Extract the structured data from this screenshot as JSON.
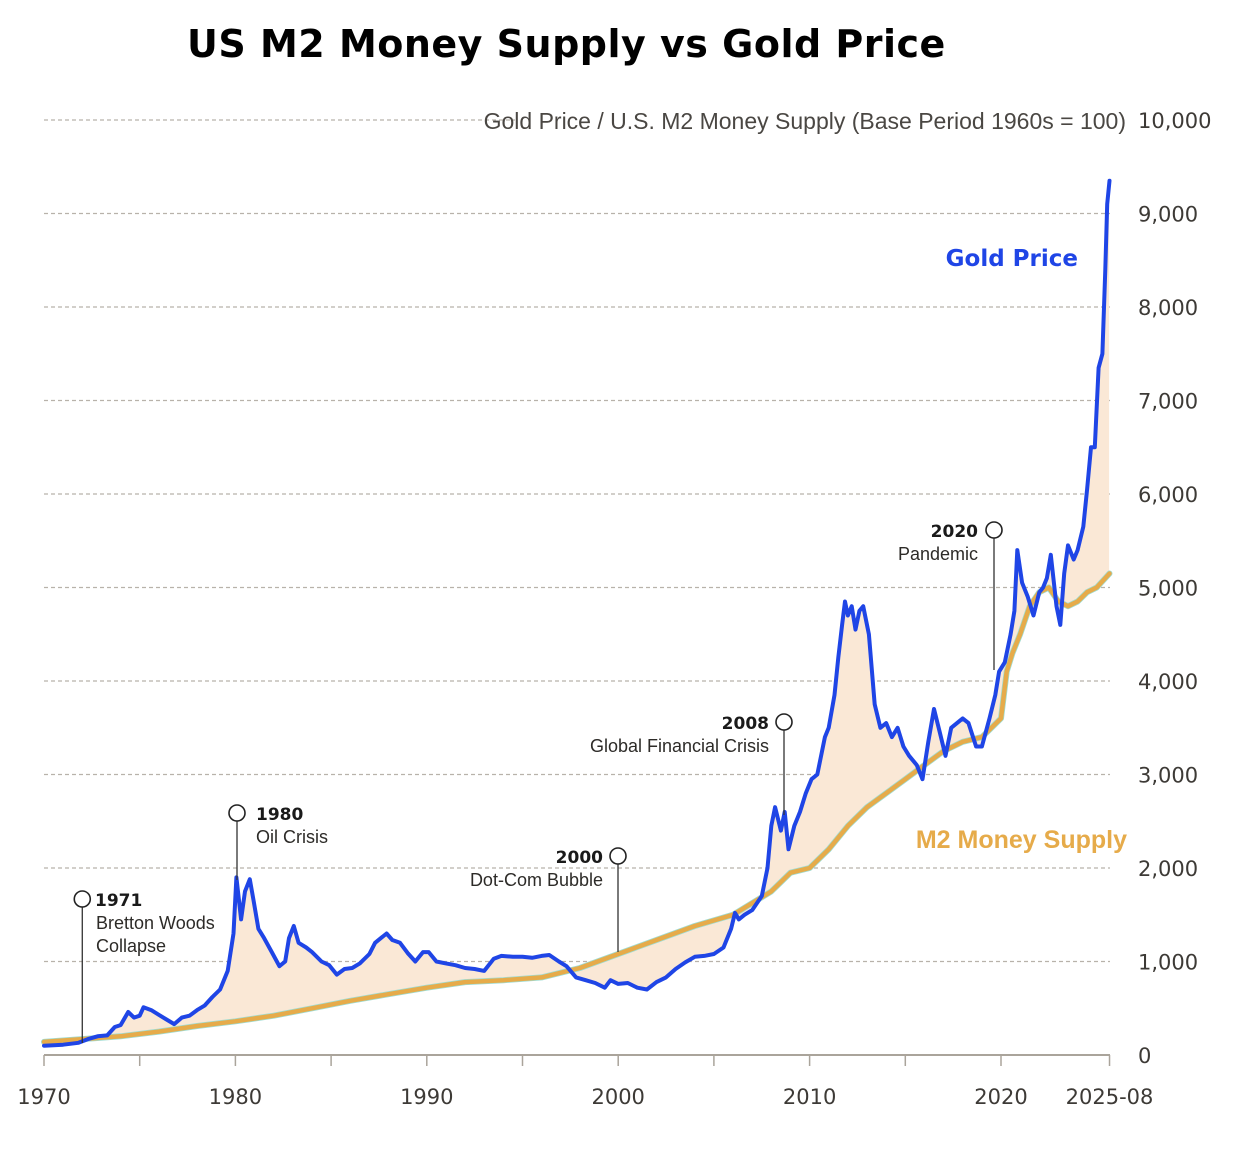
{
  "title": "US M2 Money Supply vs Gold Price",
  "chart_data": {
    "type": "line",
    "title": "US M2 Money Supply vs Gold Price",
    "ylabel": "Gold Price / U.S. M2 Money Supply (Base Period 1960s = 100)",
    "xlabel": "",
    "ylim": [
      0,
      10000
    ],
    "xlim": [
      1970,
      2025.67
    ],
    "grid": true,
    "legend": "inline",
    "y_ticks": [
      {
        "value": 0,
        "label": "0"
      },
      {
        "value": 1000,
        "label": "1,000"
      },
      {
        "value": 2000,
        "label": "2,000"
      },
      {
        "value": 3000,
        "label": "3,000"
      },
      {
        "value": 4000,
        "label": "4,000"
      },
      {
        "value": 5000,
        "label": "5,000"
      },
      {
        "value": 6000,
        "label": "6,000"
      },
      {
        "value": 7000,
        "label": "7,000"
      },
      {
        "value": 8000,
        "label": "8,000"
      },
      {
        "value": 9000,
        "label": "9,000"
      },
      {
        "value": 10000,
        "label": "10,000"
      }
    ],
    "x_ticks": [
      {
        "value": 1970,
        "label": "1970"
      },
      {
        "value": 1980,
        "label": "1980"
      },
      {
        "value": 1990,
        "label": "1990"
      },
      {
        "value": 2000,
        "label": "2000"
      },
      {
        "value": 2010,
        "label": "2010"
      },
      {
        "value": 2020,
        "label": "2020"
      },
      {
        "value": 2025.67,
        "label": "2025-08"
      }
    ],
    "x_minor_ticks": [
      1975,
      1985,
      1995,
      2005,
      2015
    ],
    "series": [
      {
        "name": "Gold Price",
        "color": "#1f45e6",
        "points": [
          [
            1970.0,
            100
          ],
          [
            1971.0,
            110
          ],
          [
            1971.8,
            130
          ],
          [
            1972.3,
            170
          ],
          [
            1972.8,
            200
          ],
          [
            1973.3,
            210
          ],
          [
            1973.7,
            300
          ],
          [
            1974.0,
            320
          ],
          [
            1974.4,
            460
          ],
          [
            1974.7,
            400
          ],
          [
            1975.0,
            420
          ],
          [
            1975.2,
            510
          ],
          [
            1975.6,
            480
          ],
          [
            1976.0,
            430
          ],
          [
            1976.4,
            380
          ],
          [
            1976.8,
            330
          ],
          [
            1977.2,
            400
          ],
          [
            1977.6,
            420
          ],
          [
            1978.0,
            480
          ],
          [
            1978.4,
            530
          ],
          [
            1978.8,
            620
          ],
          [
            1979.2,
            700
          ],
          [
            1979.6,
            900
          ],
          [
            1979.9,
            1300
          ],
          [
            1980.05,
            1900
          ],
          [
            1980.3,
            1450
          ],
          [
            1980.5,
            1750
          ],
          [
            1980.75,
            1880
          ],
          [
            1980.95,
            1650
          ],
          [
            1981.2,
            1350
          ],
          [
            1981.5,
            1250
          ],
          [
            1981.9,
            1100
          ],
          [
            1982.3,
            950
          ],
          [
            1982.6,
            1000
          ],
          [
            1982.8,
            1250
          ],
          [
            1983.05,
            1380
          ],
          [
            1983.3,
            1200
          ],
          [
            1983.7,
            1150
          ],
          [
            1984.0,
            1100
          ],
          [
            1984.5,
            1000
          ],
          [
            1984.9,
            960
          ],
          [
            1985.3,
            860
          ],
          [
            1985.7,
            920
          ],
          [
            1986.1,
            930
          ],
          [
            1986.5,
            980
          ],
          [
            1987.0,
            1080
          ],
          [
            1987.3,
            1200
          ],
          [
            1987.6,
            1250
          ],
          [
            1987.9,
            1300
          ],
          [
            1988.2,
            1230
          ],
          [
            1988.6,
            1200
          ],
          [
            1989.0,
            1090
          ],
          [
            1989.4,
            1000
          ],
          [
            1989.8,
            1100
          ],
          [
            1990.1,
            1100
          ],
          [
            1990.5,
            1000
          ],
          [
            1991.0,
            980
          ],
          [
            1991.5,
            960
          ],
          [
            1992.0,
            930
          ],
          [
            1992.5,
            920
          ],
          [
            1993.0,
            900
          ],
          [
            1993.5,
            1030
          ],
          [
            1993.9,
            1060
          ],
          [
            1994.5,
            1050
          ],
          [
            1995.0,
            1050
          ],
          [
            1995.5,
            1040
          ],
          [
            1996.0,
            1060
          ],
          [
            1996.4,
            1070
          ],
          [
            1996.9,
            1000
          ],
          [
            1997.3,
            950
          ],
          [
            1997.8,
            830
          ],
          [
            1998.3,
            800
          ],
          [
            1998.8,
            770
          ],
          [
            1999.3,
            720
          ],
          [
            1999.6,
            800
          ],
          [
            2000.0,
            760
          ],
          [
            2000.5,
            770
          ],
          [
            2001.0,
            720
          ],
          [
            2001.5,
            700
          ],
          [
            2002.0,
            780
          ],
          [
            2002.5,
            830
          ],
          [
            2003.0,
            920
          ],
          [
            2003.5,
            990
          ],
          [
            2004.0,
            1050
          ],
          [
            2004.5,
            1060
          ],
          [
            2005.0,
            1080
          ],
          [
            2005.5,
            1150
          ],
          [
            2005.9,
            1350
          ],
          [
            2006.1,
            1520
          ],
          [
            2006.3,
            1450
          ],
          [
            2006.6,
            1500
          ],
          [
            2007.0,
            1550
          ],
          [
            2007.5,
            1700
          ],
          [
            2007.8,
            2000
          ],
          [
            2008.0,
            2450
          ],
          [
            2008.2,
            2650
          ],
          [
            2008.5,
            2400
          ],
          [
            2008.7,
            2600
          ],
          [
            2008.9,
            2200
          ],
          [
            2009.2,
            2450
          ],
          [
            2009.5,
            2600
          ],
          [
            2009.8,
            2800
          ],
          [
            2010.1,
            2950
          ],
          [
            2010.4,
            3000
          ],
          [
            2010.8,
            3400
          ],
          [
            2011.0,
            3500
          ],
          [
            2011.3,
            3850
          ],
          [
            2011.5,
            4250
          ],
          [
            2011.7,
            4600
          ],
          [
            2011.85,
            4850
          ],
          [
            2012.0,
            4700
          ],
          [
            2012.2,
            4800
          ],
          [
            2012.4,
            4550
          ],
          [
            2012.6,
            4750
          ],
          [
            2012.8,
            4800
          ],
          [
            2013.1,
            4500
          ],
          [
            2013.4,
            3750
          ],
          [
            2013.7,
            3500
          ],
          [
            2014.0,
            3550
          ],
          [
            2014.3,
            3400
          ],
          [
            2014.6,
            3500
          ],
          [
            2014.9,
            3300
          ],
          [
            2015.2,
            3200
          ],
          [
            2015.6,
            3100
          ],
          [
            2015.9,
            2950
          ],
          [
            2016.2,
            3350
          ],
          [
            2016.5,
            3700
          ],
          [
            2016.8,
            3450
          ],
          [
            2017.1,
            3200
          ],
          [
            2017.4,
            3500
          ],
          [
            2017.7,
            3550
          ],
          [
            2018.0,
            3600
          ],
          [
            2018.3,
            3550
          ],
          [
            2018.7,
            3300
          ],
          [
            2019.0,
            3300
          ],
          [
            2019.4,
            3600
          ],
          [
            2019.7,
            3850
          ],
          [
            2019.9,
            4100
          ],
          [
            2020.2,
            4200
          ],
          [
            2020.5,
            4500
          ],
          [
            2020.7,
            4750
          ],
          [
            2020.85,
            5400
          ],
          [
            2021.1,
            5050
          ],
          [
            2021.4,
            4900
          ],
          [
            2021.7,
            4700
          ],
          [
            2022.0,
            4950
          ],
          [
            2022.2,
            5000
          ],
          [
            2022.4,
            5100
          ],
          [
            2022.6,
            5350
          ],
          [
            2022.9,
            4800
          ],
          [
            2023.1,
            4600
          ],
          [
            2023.3,
            5150
          ],
          [
            2023.5,
            5450
          ],
          [
            2023.8,
            5300
          ],
          [
            2024.0,
            5400
          ],
          [
            2024.3,
            5650
          ],
          [
            2024.5,
            6050
          ],
          [
            2024.7,
            6500
          ],
          [
            2024.9,
            6500
          ],
          [
            2025.1,
            7350
          ],
          [
            2025.3,
            7500
          ],
          [
            2025.45,
            8400
          ],
          [
            2025.55,
            9100
          ],
          [
            2025.67,
            9350
          ]
        ]
      },
      {
        "name": "M2 Money Supply",
        "color": "#e6ab4a",
        "points": [
          [
            1970.0,
            140
          ],
          [
            1972.0,
            170
          ],
          [
            1974.0,
            200
          ],
          [
            1976.0,
            250
          ],
          [
            1978.0,
            310
          ],
          [
            1980.0,
            360
          ],
          [
            1982.0,
            420
          ],
          [
            1984.0,
            500
          ],
          [
            1986.0,
            580
          ],
          [
            1988.0,
            650
          ],
          [
            1990.0,
            720
          ],
          [
            1992.0,
            780
          ],
          [
            1994.0,
            800
          ],
          [
            1996.0,
            830
          ],
          [
            1998.0,
            930
          ],
          [
            2000.0,
            1080
          ],
          [
            2002.0,
            1230
          ],
          [
            2004.0,
            1380
          ],
          [
            2006.0,
            1500
          ],
          [
            2008.0,
            1750
          ],
          [
            2009.0,
            1950
          ],
          [
            2010.0,
            2000
          ],
          [
            2011.0,
            2200
          ],
          [
            2012.0,
            2450
          ],
          [
            2013.0,
            2650
          ],
          [
            2014.0,
            2800
          ],
          [
            2015.0,
            2950
          ],
          [
            2016.0,
            3100
          ],
          [
            2017.0,
            3250
          ],
          [
            2018.0,
            3350
          ],
          [
            2019.0,
            3400
          ],
          [
            2019.5,
            3500
          ],
          [
            2020.0,
            3600
          ],
          [
            2020.3,
            4100
          ],
          [
            2020.6,
            4300
          ],
          [
            2021.0,
            4500
          ],
          [
            2021.5,
            4800
          ],
          [
            2022.0,
            4950
          ],
          [
            2022.5,
            5000
          ],
          [
            2023.0,
            4850
          ],
          [
            2023.5,
            4800
          ],
          [
            2024.0,
            4850
          ],
          [
            2024.5,
            4950
          ],
          [
            2025.0,
            5000
          ],
          [
            2025.67,
            5150
          ]
        ]
      }
    ],
    "series_labels": [
      {
        "series": "Gold Price",
        "text": "Gold Price"
      },
      {
        "series": "M2 Money Supply",
        "text": "M2 Money Supply"
      }
    ],
    "fill_between": {
      "color": "#fae8d6",
      "description": "Shaded area between Gold Price and M2 Money Supply lines"
    },
    "annotations": [
      {
        "year": "1971",
        "text_lines": [
          "Bretton Woods",
          "Collapse"
        ],
        "x": 1972.0,
        "label_side": "right"
      },
      {
        "year": "1980",
        "text_lines": [
          "Oil Crisis"
        ],
        "x": 1980.1,
        "label_side": "right"
      },
      {
        "year": "2000",
        "text_lines": [
          "Dot-Com Bubble"
        ],
        "x": 2000.0,
        "label_side": "left"
      },
      {
        "year": "2008",
        "text_lines": [
          "Global Financial Crisis"
        ],
        "x": 2008.7,
        "label_side": "left"
      },
      {
        "year": "2020",
        "text_lines": [
          "Pandemic"
        ],
        "x": 2019.7,
        "label_side": "left"
      }
    ]
  }
}
